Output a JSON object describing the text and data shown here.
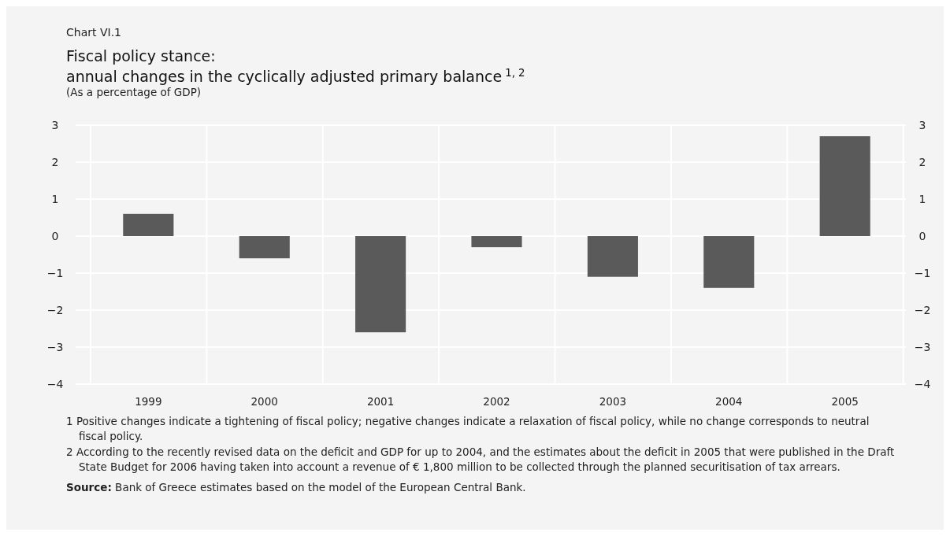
{
  "chart_data": {
    "type": "bar",
    "title": "Fiscal policy stance:\nannual changes in the cyclically adjusted primary balance$^{1, 2}$",
    "subtitle": "(As a percentage of GDP)",
    "categories": [
      "1999",
      "2000",
      "2001",
      "2002",
      "2003",
      "2004",
      "2005"
    ],
    "values": [
      0.6,
      -0.6,
      -2.6,
      -0.3,
      -1.1,
      -1.4,
      2.7
    ],
    "color": "#5a5a5a",
    "ylim": [
      -4,
      3
    ],
    "yticks": [
      -4,
      -3,
      -2,
      -1,
      0,
      1,
      2,
      3
    ],
    "y2lim": [
      -4,
      3
    ],
    "y2ticks": [
      -4,
      -3,
      -2,
      -1,
      0,
      1,
      2,
      3
    ],
    "grid": true,
    "annotations": [
      "Chart VI.1",
      "1  Positive changes indicate a tightening of fiscal policy; negative changes indicate a relaxation of fiscal policy, while no change corresponds to neutral fiscal policy.",
      "2  According to the recently revised data on the deficit and GDP for up to 2004, and the estimates about the deficit in 2005 that were published in the Draft State Budget for 2006 having taken into account a revenue of € 1,800 million to be collected through the planned securitisation of tax arrears.",
      "Source: Bank of Greece estimates based on the model of the European Central Bank."
    ]
  }
}
